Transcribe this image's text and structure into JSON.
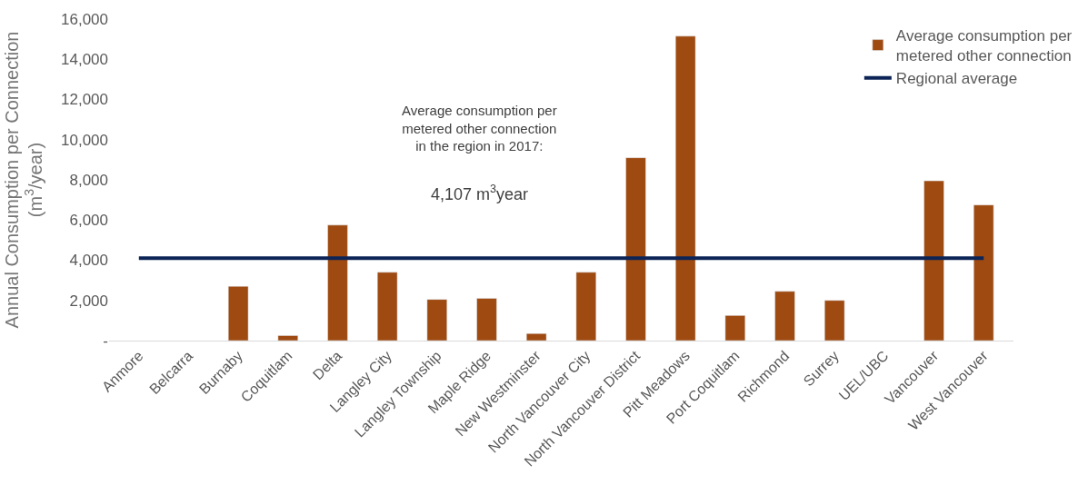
{
  "chart_data": {
    "type": "bar",
    "categories": [
      "Anmore",
      "Belcarra",
      "Burnaby",
      "Coquitlam",
      "Delta",
      "Langley City",
      "Langley Township",
      "Maple Ridge",
      "New Westminster",
      "North Vancouver City",
      "North Vancouver District",
      "Pitt Meadows",
      "Port Coquitlam",
      "Richmond",
      "Surrey",
      "UEL/UBC",
      "Vancouver",
      "West Vancouver"
    ],
    "ylabel": "Annual Consumption per Connection\n(m$^{3}$/year)",
    "ylim": [
      0,
      16000
    ],
    "yticks": [
      {
        "value": 0,
        "label": "-"
      },
      {
        "value": 2000,
        "label": "2,000"
      },
      {
        "value": 4000,
        "label": "4,000"
      },
      {
        "value": 6000,
        "label": "6,000"
      },
      {
        "value": 8000,
        "label": "8,000"
      },
      {
        "value": 10000,
        "label": "10,000"
      },
      {
        "value": 12000,
        "label": "12,000"
      },
      {
        "value": 14000,
        "label": "14,000"
      },
      {
        "value": 16000,
        "label": "16,000"
      }
    ],
    "series": [
      {
        "name": "Average consumption per\nmetered other connection",
        "color": "#9e4a10",
        "values": [
          null,
          null,
          2700,
          250,
          5750,
          3400,
          2050,
          2100,
          350,
          3400,
          9100,
          15150,
          1250,
          2450,
          2000,
          null,
          7950,
          6750
        ]
      },
      {
        "name": "Regional average",
        "color": "#0d2456",
        "type": "line",
        "values": [
          4107,
          4107,
          4107,
          4107,
          4107,
          4107,
          4107,
          4107,
          4107,
          4107,
          4107,
          4107,
          4107,
          4107,
          4107,
          4107,
          4107,
          4107
        ]
      }
    ],
    "annotations": [
      "Average consumption per\nmetered other connection\nin the region in 2017:",
      "4,107 m$^{3}$year"
    ],
    "legend": "top right",
    "marker": "none",
    "line_style": "solid"
  }
}
